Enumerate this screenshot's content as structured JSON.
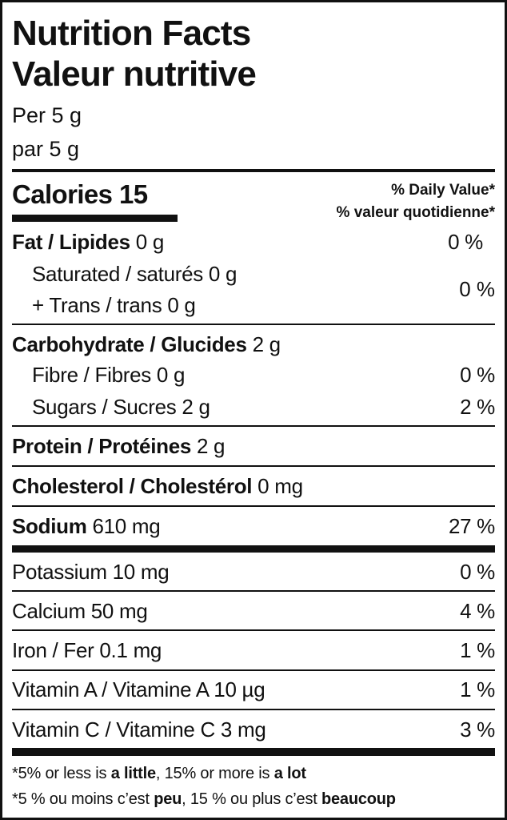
{
  "header": {
    "title_en": "Nutrition Facts",
    "title_fr": "Valeur nutritive",
    "serving_en": "Per 5 g",
    "serving_fr": "par 5 g"
  },
  "calories": {
    "label": "Calories",
    "value": "15",
    "dv_en": "% Daily Value*",
    "dv_fr": "% valeur quotidienne*"
  },
  "nutrients": {
    "fat": {
      "label": "Fat / Lipides",
      "amount": "0 g",
      "dv": "0 %"
    },
    "saturated": {
      "label": "Saturated / saturés 0 g",
      "amount": ""
    },
    "trans": {
      "label": "+ Trans / trans 0 g",
      "dv": "0 %"
    },
    "carb": {
      "label": "Carbohydrate / Glucides",
      "amount": "2 g"
    },
    "fibre": {
      "label": "Fibre / Fibres 0 g",
      "dv": "0 %"
    },
    "sugars": {
      "label": "Sugars / Sucres 2 g",
      "dv": "2 %"
    },
    "protein": {
      "label": "Protein / Protéines",
      "amount": "2 g"
    },
    "cholesterol": {
      "label": "Cholesterol / Cholestérol",
      "amount": "0 mg"
    },
    "sodium": {
      "label": "Sodium",
      "amount": "610 mg",
      "dv": "27 %"
    },
    "potassium": {
      "label": "Potassium 10 mg",
      "dv": "0 %"
    },
    "calcium": {
      "label": "Calcium 50 mg",
      "dv": "4 %"
    },
    "iron": {
      "label": "Iron / Fer 0.1 mg",
      "dv": "1 %"
    },
    "vitamin_a": {
      "label": "Vitamin A / Vitamine A 10 µg",
      "dv": "1 %"
    },
    "vitamin_c": {
      "label": "Vitamin C / Vitamine C 3 mg",
      "dv": "3 %"
    }
  },
  "footnote": {
    "en_1": "*5% or less is ",
    "en_2": "a little",
    "en_3": ", 15% or more is ",
    "en_4": "a lot",
    "fr_1": "*5 % ou moins c’est ",
    "fr_2": "peu",
    "fr_3": ", 15 % ou plus c’est ",
    "fr_4": "beaucoup"
  }
}
